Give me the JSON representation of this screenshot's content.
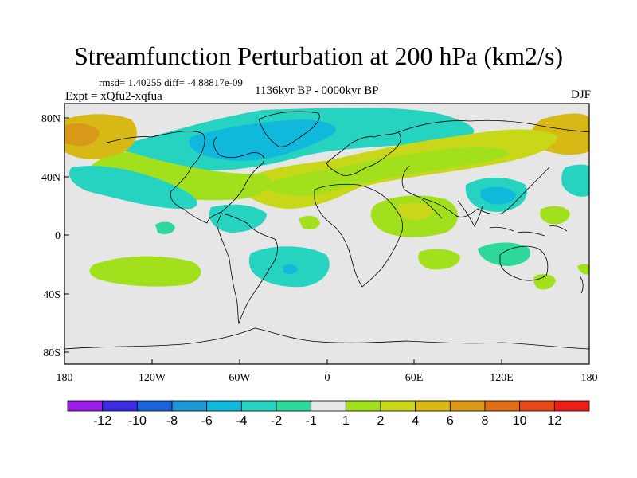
{
  "figure": {
    "title": "Streamfunction Perturbation at 200 hPa (km2/s)",
    "stats": "rmsd= 1.40255 diff= -4.88817e-09",
    "experiment": "Expt = xQfu2-xqfua",
    "period": "1136kyr BP - 0000kyr BP",
    "season": "DJF"
  },
  "map": {
    "background_color": "#e6e6e6",
    "lat_ticks": [
      "80N",
      "40N",
      "0",
      "40S",
      "80S"
    ],
    "lon_ticks": [
      "180",
      "120W",
      "60W",
      "0",
      "60E",
      "120E",
      "180"
    ]
  },
  "colorbar": {
    "colors": [
      "#9a1ee8",
      "#3c2ee0",
      "#1a64d8",
      "#1e98d4",
      "#10b8dc",
      "#26d2c0",
      "#2ed89a",
      "#e8e8e8",
      "#a2e01e",
      "#c8d818",
      "#d8b814",
      "#d89818",
      "#e07018",
      "#e84a18",
      "#e82018"
    ],
    "labels": [
      "-12",
      "-10",
      "-8",
      "-6",
      "-4",
      "-2",
      "-1",
      "1",
      "2",
      "4",
      "6",
      "8",
      "10",
      "12"
    ]
  }
}
